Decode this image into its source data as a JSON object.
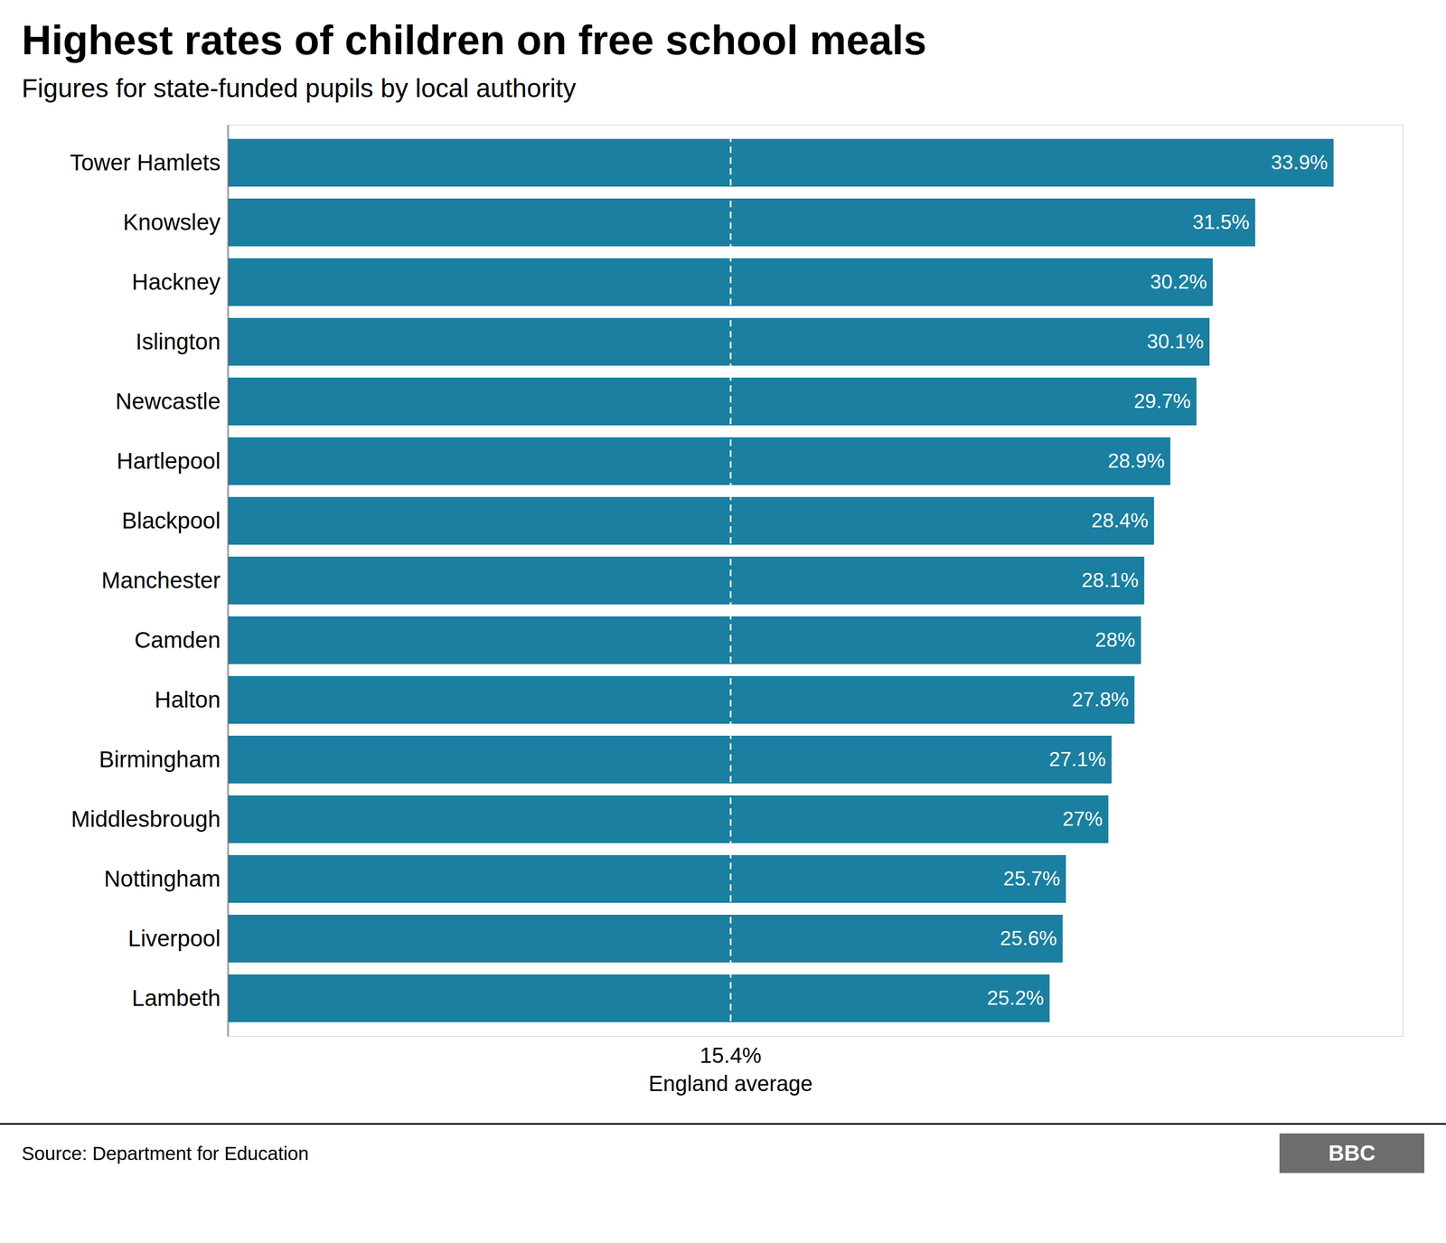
{
  "chart_data": {
    "type": "bar",
    "orientation": "horizontal",
    "title": "Highest rates of children on free school meals",
    "subtitle": "Figures for state-funded pupils by local authority",
    "source": "Source: Department for Education",
    "logo": "BBC",
    "categories": [
      "Tower Hamlets",
      "Knowsley",
      "Hackney",
      "Islington",
      "Newcastle",
      "Hartlepool",
      "Blackpool",
      "Manchester",
      "Camden",
      "Halton",
      "Birmingham",
      "Middlesbrough",
      "Nottingham",
      "Liverpool",
      "Lambeth"
    ],
    "values": [
      33.9,
      31.5,
      30.2,
      30.1,
      29.7,
      28.9,
      28.4,
      28.1,
      28.0,
      27.8,
      27.1,
      27.0,
      25.7,
      25.6,
      25.2
    ],
    "value_labels": [
      "33.9%",
      "31.5%",
      "30.2%",
      "30.1%",
      "29.7%",
      "28.9%",
      "28.4%",
      "28.1%",
      "28%",
      "27.8%",
      "27.1%",
      "27%",
      "25.7%",
      "25.6%",
      "25.2%"
    ],
    "data_labels": true,
    "color": "#1a7fa0",
    "xlim": [
      0,
      36
    ],
    "tick_labels": "y",
    "grid": false,
    "average_line": {
      "value": 15.4,
      "labels": [
        "15.4%",
        "England average"
      ]
    }
  }
}
